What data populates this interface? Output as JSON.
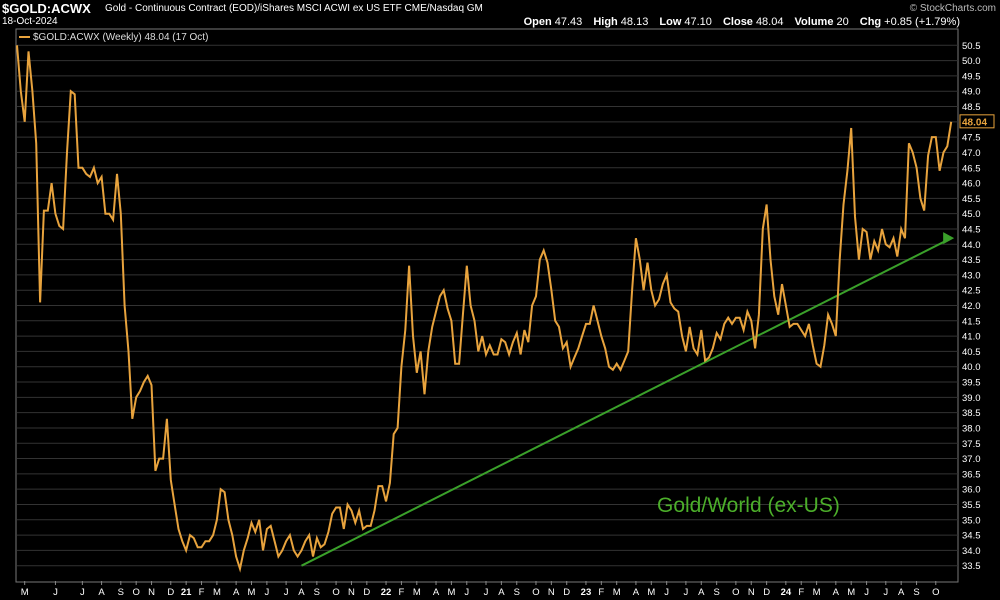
{
  "header": {
    "symbol": "$GOLD:ACWX",
    "description": "Gold - Continuous Contract (EOD)/iShares MSCI ACWI ex US ETF  CME/Nasdaq GM",
    "date": "18-Oct-2024",
    "brand": "© StockCharts.com",
    "open_label": "Open",
    "open": "47.43",
    "high_label": "High",
    "high": "48.13",
    "low_label": "Low",
    "low": "47.10",
    "close_label": "Close",
    "close": "48.04",
    "volume_label": "Volume",
    "volume": "20",
    "chg_label": "Chg",
    "chg": "+0.85 (+1.79%)"
  },
  "chart_data": {
    "type": "line",
    "legend": "$GOLD:ACWX (Weekly) 48.04 (17 Oct)",
    "last_value_label": "48.04",
    "annotation": "Gold/World (ex-US)",
    "colors": {
      "line": "#e8a33d",
      "trend": "#3aa02a",
      "grid": "#333333",
      "annotation": "#4caf2a",
      "axis_text": "#ffffff"
    },
    "ylim": [
      33.0,
      51.0
    ],
    "yticks": [
      33.5,
      34.0,
      34.5,
      35.0,
      35.5,
      36.0,
      36.5,
      37.0,
      37.5,
      38.0,
      38.5,
      39.0,
      39.5,
      40.0,
      40.5,
      41.0,
      41.5,
      42.0,
      42.5,
      43.0,
      43.5,
      44.0,
      44.5,
      45.0,
      45.5,
      46.0,
      46.5,
      47.0,
      47.5,
      48.0,
      48.5,
      49.0,
      49.5,
      50.0,
      50.5
    ],
    "xlim": [
      0,
      240
    ],
    "xticks": [
      {
        "label": "M",
        "w": 2
      },
      {
        "label": "J",
        "w": 10
      },
      {
        "label": "J",
        "w": 17
      },
      {
        "label": "A",
        "w": 22
      },
      {
        "label": "S",
        "w": 27
      },
      {
        "label": "O",
        "w": 31
      },
      {
        "label": "N",
        "w": 35
      },
      {
        "label": "D",
        "w": 40
      },
      {
        "label": "21",
        "w": 44
      },
      {
        "label": "F",
        "w": 48
      },
      {
        "label": "M",
        "w": 52
      },
      {
        "label": "A",
        "w": 57
      },
      {
        "label": "M",
        "w": 61
      },
      {
        "label": "J",
        "w": 65
      },
      {
        "label": "J",
        "w": 70
      },
      {
        "label": "A",
        "w": 74
      },
      {
        "label": "S",
        "w": 78
      },
      {
        "label": "O",
        "w": 83
      },
      {
        "label": "N",
        "w": 87
      },
      {
        "label": "D",
        "w": 91
      },
      {
        "label": "22",
        "w": 96
      },
      {
        "label": "F",
        "w": 100
      },
      {
        "label": "M",
        "w": 104
      },
      {
        "label": "A",
        "w": 109
      },
      {
        "label": "M",
        "w": 113
      },
      {
        "label": "J",
        "w": 117
      },
      {
        "label": "J",
        "w": 122
      },
      {
        "label": "A",
        "w": 126
      },
      {
        "label": "S",
        "w": 130
      },
      {
        "label": "O",
        "w": 135
      },
      {
        "label": "N",
        "w": 139
      },
      {
        "label": "D",
        "w": 143
      },
      {
        "label": "23",
        "w": 148
      },
      {
        "label": "F",
        "w": 152
      },
      {
        "label": "M",
        "w": 156
      },
      {
        "label": "A",
        "w": 161
      },
      {
        "label": "M",
        "w": 165
      },
      {
        "label": "J",
        "w": 169
      },
      {
        "label": "J",
        "w": 174
      },
      {
        "label": "A",
        "w": 178
      },
      {
        "label": "S",
        "w": 182
      },
      {
        "label": "O",
        "w": 187
      },
      {
        "label": "N",
        "w": 191
      },
      {
        "label": "D",
        "w": 195
      },
      {
        "label": "24",
        "w": 200
      },
      {
        "label": "F",
        "w": 204
      },
      {
        "label": "M",
        "w": 208
      },
      {
        "label": "A",
        "w": 213
      },
      {
        "label": "M",
        "w": 217
      },
      {
        "label": "J",
        "w": 221
      },
      {
        "label": "J",
        "w": 226
      },
      {
        "label": "A",
        "w": 230
      },
      {
        "label": "S",
        "w": 234
      },
      {
        "label": "O",
        "w": 239
      }
    ],
    "series": [
      {
        "values": [
          [
            0,
            50.5
          ],
          [
            1,
            49.0
          ],
          [
            2,
            48.0
          ],
          [
            3,
            50.3
          ],
          [
            4,
            49.0
          ],
          [
            5,
            47.3
          ],
          [
            6,
            42.1
          ],
          [
            7,
            45.1
          ],
          [
            8,
            45.1
          ],
          [
            9,
            46.0
          ],
          [
            10,
            45.0
          ],
          [
            11,
            44.6
          ],
          [
            12,
            44.5
          ],
          [
            13,
            47.0
          ],
          [
            14,
            49.0
          ],
          [
            15,
            48.9
          ],
          [
            16,
            46.5
          ],
          [
            17,
            46.5
          ],
          [
            18,
            46.3
          ],
          [
            19,
            46.2
          ],
          [
            20,
            46.5
          ],
          [
            21,
            46.0
          ],
          [
            22,
            46.2
          ],
          [
            23,
            45.0
          ],
          [
            24,
            45.0
          ],
          [
            25,
            44.8
          ],
          [
            26,
            46.3
          ],
          [
            27,
            45.0
          ],
          [
            28,
            42.0
          ],
          [
            29,
            40.5
          ],
          [
            30,
            38.3
          ],
          [
            31,
            39.0
          ],
          [
            32,
            39.2
          ],
          [
            33,
            39.5
          ],
          [
            34,
            39.7
          ],
          [
            35,
            39.4
          ],
          [
            36,
            36.6
          ],
          [
            37,
            37.0
          ],
          [
            38,
            37.0
          ],
          [
            39,
            38.3
          ],
          [
            40,
            36.3
          ],
          [
            41,
            35.5
          ],
          [
            42,
            34.7
          ],
          [
            43,
            34.3
          ],
          [
            44,
            34.0
          ],
          [
            45,
            34.5
          ],
          [
            46,
            34.4
          ],
          [
            47,
            34.1
          ],
          [
            48,
            34.1
          ],
          [
            49,
            34.3
          ],
          [
            50,
            34.3
          ],
          [
            51,
            34.5
          ],
          [
            52,
            35.0
          ],
          [
            53,
            36.0
          ],
          [
            54,
            35.9
          ],
          [
            55,
            35.0
          ],
          [
            56,
            34.5
          ],
          [
            57,
            33.8
          ],
          [
            58,
            33.4
          ],
          [
            59,
            34.0
          ],
          [
            60,
            34.4
          ],
          [
            61,
            34.9
          ],
          [
            62,
            34.6
          ],
          [
            63,
            35.0
          ],
          [
            64,
            34.0
          ],
          [
            65,
            34.7
          ],
          [
            66,
            34.8
          ],
          [
            67,
            34.3
          ],
          [
            68,
            33.8
          ],
          [
            69,
            34.0
          ],
          [
            70,
            34.3
          ],
          [
            71,
            34.5
          ],
          [
            72,
            34.0
          ],
          [
            73,
            33.8
          ],
          [
            74,
            34.0
          ],
          [
            75,
            34.3
          ],
          [
            76,
            34.5
          ],
          [
            77,
            33.8
          ],
          [
            78,
            34.4
          ],
          [
            79,
            34.1
          ],
          [
            80,
            34.2
          ],
          [
            81,
            34.6
          ],
          [
            82,
            35.2
          ],
          [
            83,
            35.4
          ],
          [
            84,
            35.4
          ],
          [
            85,
            34.7
          ],
          [
            86,
            35.5
          ],
          [
            87,
            35.3
          ],
          [
            88,
            34.9
          ],
          [
            89,
            35.3
          ],
          [
            90,
            34.7
          ],
          [
            91,
            34.8
          ],
          [
            92,
            34.8
          ],
          [
            93,
            35.3
          ],
          [
            94,
            36.1
          ],
          [
            95,
            36.1
          ],
          [
            96,
            35.6
          ],
          [
            97,
            36.2
          ],
          [
            98,
            37.8
          ],
          [
            99,
            38.0
          ],
          [
            100,
            40.0
          ],
          [
            101,
            41.2
          ],
          [
            102,
            43.3
          ],
          [
            103,
            41.0
          ],
          [
            104,
            39.8
          ],
          [
            105,
            40.5
          ],
          [
            106,
            39.1
          ],
          [
            107,
            40.5
          ],
          [
            108,
            41.3
          ],
          [
            109,
            41.8
          ],
          [
            110,
            42.3
          ],
          [
            111,
            42.5
          ],
          [
            112,
            41.9
          ],
          [
            113,
            41.5
          ],
          [
            114,
            40.1
          ],
          [
            115,
            40.1
          ],
          [
            116,
            41.7
          ],
          [
            117,
            43.3
          ],
          [
            118,
            42.0
          ],
          [
            119,
            41.5
          ],
          [
            120,
            40.5
          ],
          [
            121,
            41.0
          ],
          [
            122,
            40.4
          ],
          [
            123,
            40.7
          ],
          [
            124,
            40.4
          ],
          [
            125,
            40.4
          ],
          [
            126,
            40.9
          ],
          [
            127,
            40.8
          ],
          [
            128,
            40.4
          ],
          [
            129,
            40.8
          ],
          [
            130,
            41.1
          ],
          [
            131,
            40.4
          ],
          [
            132,
            41.2
          ],
          [
            133,
            40.8
          ],
          [
            134,
            42.0
          ],
          [
            135,
            42.3
          ],
          [
            136,
            43.5
          ],
          [
            137,
            43.8
          ],
          [
            138,
            43.4
          ],
          [
            139,
            42.5
          ],
          [
            140,
            41.5
          ],
          [
            141,
            41.3
          ],
          [
            142,
            40.6
          ],
          [
            143,
            40.8
          ],
          [
            144,
            40.0
          ],
          [
            145,
            40.3
          ],
          [
            146,
            40.6
          ],
          [
            147,
            41.0
          ],
          [
            148,
            41.4
          ],
          [
            149,
            41.4
          ],
          [
            150,
            42.0
          ],
          [
            151,
            41.5
          ],
          [
            152,
            41.0
          ],
          [
            153,
            40.6
          ],
          [
            154,
            40.0
          ],
          [
            155,
            39.9
          ],
          [
            156,
            40.1
          ],
          [
            157,
            39.9
          ],
          [
            158,
            40.2
          ],
          [
            159,
            40.5
          ],
          [
            160,
            42.5
          ],
          [
            161,
            44.2
          ],
          [
            162,
            43.5
          ],
          [
            163,
            42.5
          ],
          [
            164,
            43.4
          ],
          [
            165,
            42.5
          ],
          [
            166,
            42.0
          ],
          [
            167,
            42.2
          ],
          [
            168,
            42.7
          ],
          [
            169,
            43.0
          ],
          [
            170,
            42.1
          ],
          [
            171,
            41.9
          ],
          [
            172,
            41.8
          ],
          [
            173,
            41.0
          ],
          [
            174,
            40.5
          ],
          [
            175,
            41.3
          ],
          [
            176,
            40.6
          ],
          [
            177,
            40.4
          ],
          [
            178,
            41.2
          ],
          [
            179,
            40.2
          ],
          [
            180,
            40.3
          ],
          [
            181,
            40.6
          ],
          [
            182,
            41.1
          ],
          [
            183,
            40.9
          ],
          [
            184,
            41.4
          ],
          [
            185,
            41.6
          ],
          [
            186,
            41.4
          ],
          [
            187,
            41.6
          ],
          [
            188,
            41.6
          ],
          [
            189,
            41.2
          ],
          [
            190,
            41.8
          ],
          [
            191,
            41.5
          ],
          [
            192,
            40.6
          ],
          [
            193,
            41.7
          ],
          [
            194,
            44.5
          ],
          [
            195,
            45.3
          ],
          [
            196,
            43.5
          ],
          [
            197,
            42.3
          ],
          [
            198,
            41.7
          ],
          [
            199,
            42.7
          ],
          [
            200,
            42.0
          ],
          [
            201,
            41.3
          ],
          [
            202,
            41.4
          ],
          [
            203,
            41.4
          ],
          [
            204,
            41.2
          ],
          [
            205,
            41.0
          ],
          [
            206,
            41.4
          ],
          [
            207,
            40.7
          ],
          [
            208,
            40.1
          ],
          [
            209,
            40.0
          ],
          [
            210,
            40.7
          ],
          [
            211,
            41.7
          ],
          [
            212,
            41.4
          ],
          [
            213,
            41.0
          ],
          [
            214,
            43.5
          ],
          [
            215,
            45.3
          ],
          [
            216,
            46.4
          ],
          [
            217,
            47.8
          ],
          [
            218,
            44.9
          ],
          [
            219,
            43.5
          ],
          [
            220,
            44.5
          ],
          [
            221,
            44.4
          ],
          [
            222,
            43.5
          ],
          [
            223,
            44.1
          ],
          [
            224,
            43.8
          ],
          [
            225,
            44.5
          ],
          [
            226,
            44.0
          ],
          [
            227,
            43.9
          ],
          [
            228,
            44.2
          ],
          [
            229,
            43.6
          ],
          [
            230,
            44.5
          ],
          [
            231,
            44.2
          ],
          [
            232,
            47.3
          ],
          [
            233,
            47.0
          ],
          [
            234,
            46.5
          ],
          [
            235,
            45.5
          ],
          [
            236,
            45.1
          ],
          [
            237,
            46.9
          ],
          [
            238,
            47.5
          ],
          [
            239,
            47.5
          ],
          [
            240,
            46.4
          ],
          [
            241,
            47.0
          ],
          [
            242,
            47.2
          ],
          [
            243,
            48.0
          ]
        ]
      }
    ],
    "trendline": [
      [
        74,
        33.5
      ],
      [
        243,
        44.2
      ]
    ]
  }
}
